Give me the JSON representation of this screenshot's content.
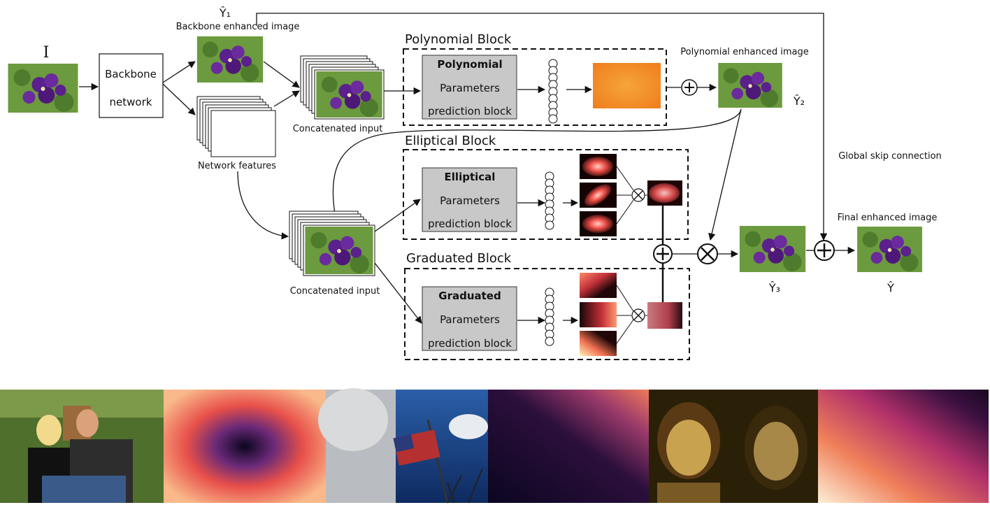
{
  "labels": {
    "input_symbol": "I",
    "y1_symbol": "Ŷ₁",
    "y2_symbol": "Ŷ₂",
    "y3_symbol": "Ŷ₃",
    "y_symbol": "Ŷ",
    "backbone_enhanced": "Backbone enhanced image",
    "backbone_line1": "Backbone",
    "backbone_line2": "network",
    "network_features": "Network features",
    "concat_input_1": "Concatenated input",
    "concat_input_2": "Concatenated input",
    "polynomial_enhanced": "Polynomial enhanced image",
    "global_skip": "Global skip connection",
    "final_enhanced": "Final enhanced image"
  },
  "blocks": {
    "polynomial": {
      "title": "Polynomial Block",
      "line1": "Polynomial",
      "line2": "Parameters",
      "line3": "prediction block"
    },
    "elliptical": {
      "title": "Elliptical Block",
      "line1": "Elliptical",
      "line2": "Parameters",
      "line3": "prediction block"
    },
    "graduated": {
      "title": "Graduated Block",
      "line1": "Graduated",
      "line2": "Parameters",
      "line3": "prediction block"
    }
  },
  "operators": {
    "plus": "+",
    "times": "×"
  },
  "colors": {
    "flower_bg": "#5f8f3a",
    "flower_petal": "#5a1f8a",
    "param_box": "#c8c8c8",
    "polynomial_map": "#f28c1e"
  }
}
